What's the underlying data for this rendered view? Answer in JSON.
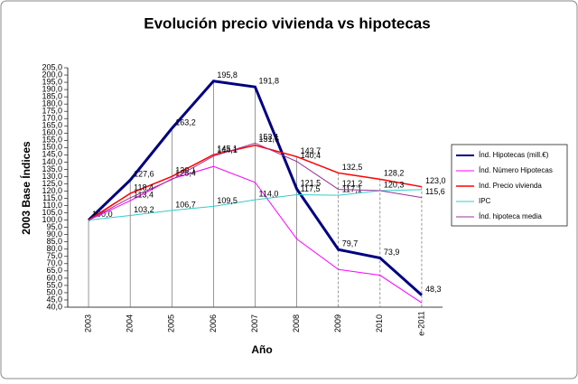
{
  "chart_data": {
    "type": "line",
    "title": "Evolución precio vivienda vs hipotecas",
    "x_label": "Año",
    "y_label": "2003 Base Índices",
    "categories": [
      "2003",
      "2004",
      "2005",
      "2006",
      "2007",
      "2008",
      "2009",
      "2010",
      "e-2011"
    ],
    "ylim": [
      40,
      205
    ],
    "yticks": [
      {
        "value": 40,
        "label": "40,0"
      },
      {
        "value": 45,
        "label": "45,0"
      },
      {
        "value": 50,
        "label": "50,0"
      },
      {
        "value": 55,
        "label": "55,0"
      },
      {
        "value": 60,
        "label": "60,0"
      },
      {
        "value": 65,
        "label": "65,0"
      },
      {
        "value": 70,
        "label": "70,0"
      },
      {
        "value": 75,
        "label": "75,0"
      },
      {
        "value": 80,
        "label": "80,0"
      },
      {
        "value": 85,
        "label": "85,0"
      },
      {
        "value": 90,
        "label": "90,0"
      },
      {
        "value": 95,
        "label": "95,0"
      },
      {
        "value": 100,
        "label": "100,0"
      },
      {
        "value": 105,
        "label": "105,0"
      },
      {
        "value": 110,
        "label": "110,0"
      },
      {
        "value": 115,
        "label": "115,0"
      },
      {
        "value": 120,
        "label": "120,0"
      },
      {
        "value": 125,
        "label": "125,0"
      },
      {
        "value": 130,
        "label": "130,0"
      },
      {
        "value": 135,
        "label": "135,0"
      },
      {
        "value": 140,
        "label": "140,0"
      },
      {
        "value": 145,
        "label": "145,0"
      },
      {
        "value": 150,
        "label": "150,0"
      },
      {
        "value": 155,
        "label": "155,0"
      },
      {
        "value": 160,
        "label": "160,0"
      },
      {
        "value": 165,
        "label": "165,0"
      },
      {
        "value": 170,
        "label": "170,0"
      },
      {
        "value": 175,
        "label": "175,0"
      },
      {
        "value": 180,
        "label": "180,0"
      },
      {
        "value": 185,
        "label": "185,0"
      },
      {
        "value": 190,
        "label": "190,0"
      },
      {
        "value": 195,
        "label": "195,0"
      },
      {
        "value": 200,
        "label": "200,0"
      },
      {
        "value": 205,
        "label": "205,0"
      }
    ],
    "legend": "right",
    "series": [
      {
        "name": "Índ. Hipotecas (mill.€)",
        "color": "#000080",
        "width": 3,
        "values": [
          100.0,
          127.6,
          163.2,
          195.8,
          191.8,
          121.5,
          79.7,
          73.9,
          48.3
        ],
        "value_labels": [
          "100,0",
          "127,6",
          "163,2",
          "195,8",
          "191,8",
          "121,5",
          "79,7",
          "73,9",
          "48,3"
        ]
      },
      {
        "name": "Índ. Número Hipotecas",
        "color": "#ff00ff",
        "width": 1,
        "values": [
          100,
          113.4,
          128.4,
          137,
          126,
          87,
          66,
          62,
          43
        ],
        "value_labels": [
          null,
          "113,4",
          "128,4",
          null,
          null,
          null,
          null,
          null,
          null
        ]
      },
      {
        "name": "Ind.  Precio vivienda",
        "color": "#ff0000",
        "width": 1.5,
        "values": [
          100,
          118.4,
          130.1,
          145.1,
          151.6,
          143.7,
          132.5,
          128.2,
          123.0
        ],
        "value_labels": [
          null,
          "118,4",
          "130,1",
          "145,1",
          "151,6",
          "143,7",
          "132,5",
          "128,2",
          "123,0"
        ]
      },
      {
        "name": "IPC",
        "color": "#33cccc",
        "width": 1,
        "values": [
          100,
          103.2,
          106.7,
          109.5,
          114.0,
          117.5,
          117.1,
          120.3,
          121
        ],
        "value_labels": [
          null,
          "103,2",
          "106,7",
          "109,5",
          "114,0",
          "117,5",
          "117,1",
          "120,3",
          null
        ]
      },
      {
        "name": "Índ. hipoteca media",
        "color": "#993399",
        "width": 1,
        "values": [
          100,
          115.4,
          128.0,
          144.1,
          153.1,
          140.4,
          121.2,
          120.3,
          115.6
        ],
        "value_labels": [
          null,
          null,
          null,
          "144,1",
          "153,1",
          "140,4",
          "121,2",
          null,
          "115,6"
        ]
      }
    ]
  }
}
